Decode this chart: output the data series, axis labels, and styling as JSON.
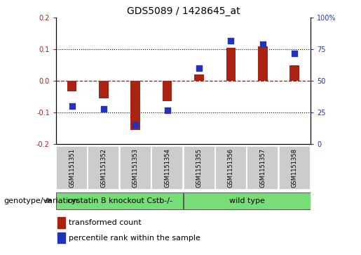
{
  "title": "GDS5089 / 1428645_at",
  "samples": [
    "GSM1151351",
    "GSM1151352",
    "GSM1151353",
    "GSM1151354",
    "GSM1151355",
    "GSM1151356",
    "GSM1151357",
    "GSM1151358"
  ],
  "bar_values": [
    -0.033,
    -0.055,
    -0.155,
    -0.065,
    0.02,
    0.105,
    0.11,
    0.05
  ],
  "percentile_values": [
    30,
    28,
    15,
    27,
    60,
    82,
    79,
    72
  ],
  "groups": [
    {
      "label": "cystatin B knockout Cstb-/-",
      "start": 0,
      "end": 3,
      "color": "#77dd77"
    },
    {
      "label": "wild type",
      "start": 3,
      "end": 7,
      "color": "#77dd77"
    }
  ],
  "ylim": [
    -0.2,
    0.2
  ],
  "yticks_left": [
    -0.2,
    -0.1,
    0.0,
    0.1,
    0.2
  ],
  "yticks_right": [
    0,
    25,
    50,
    75,
    100
  ],
  "bar_color": "#aa2211",
  "scatter_color": "#2233bb",
  "zero_line_color": "#cc0000",
  "dot_grid_color": "#000000",
  "legend_bar_label": "transformed count",
  "legend_scatter_label": "percentile rank within the sample",
  "genotype_label": "genotype/variation",
  "title_fontsize": 10,
  "tick_fontsize": 7,
  "legend_fontsize": 8,
  "sample_fontsize": 6,
  "group_fontsize": 8,
  "genotype_fontsize": 8
}
